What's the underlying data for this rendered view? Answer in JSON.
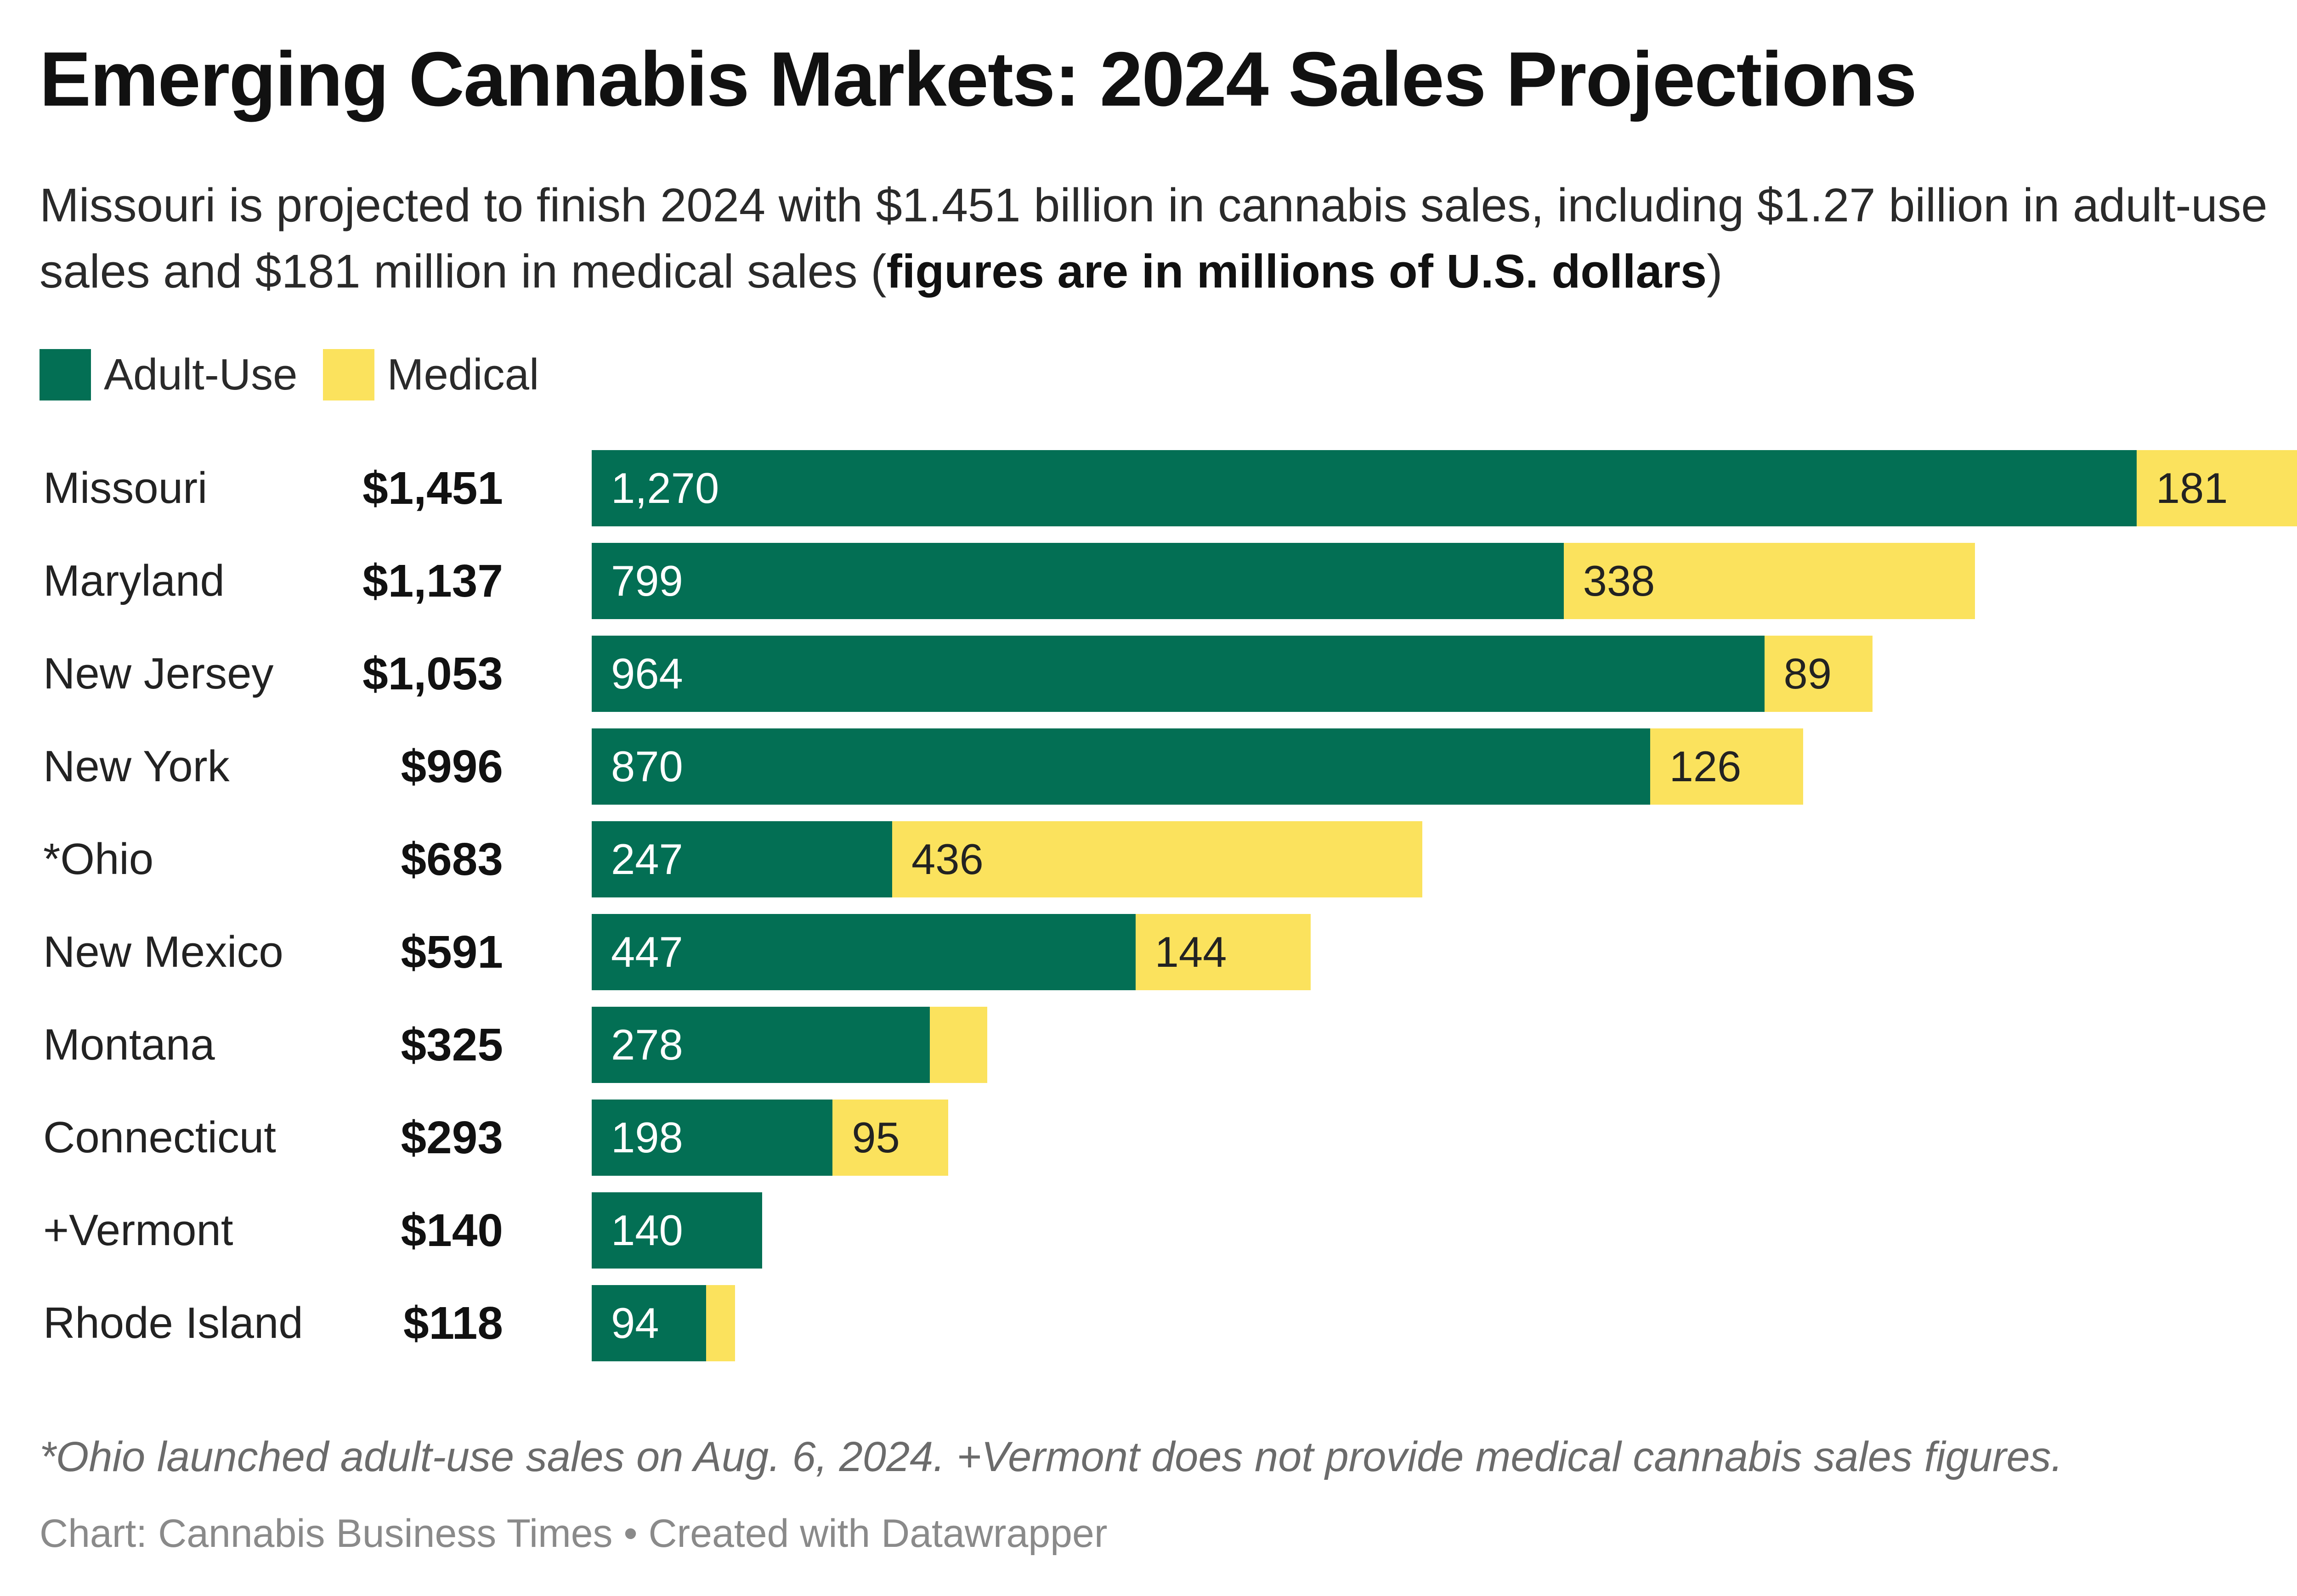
{
  "header": {
    "title": "Emerging Cannabis Markets: 2024 Sales Projections",
    "subtitle_main": "Missouri is projected to finish 2024 with $1.451 billion in cannabis sales, including $1.27 billion in adult-use sales and $181 million in medical sales (",
    "subtitle_bold": "figures are in millions of U.S. dollars",
    "subtitle_end": ")"
  },
  "legend": [
    {
      "label": "Adult-Use",
      "color": "#036f54"
    },
    {
      "label": "Medical",
      "color": "#fbe25d"
    }
  ],
  "colors": {
    "adult_use": "#036f54",
    "medical": "#fbe25d",
    "adult_use_text": "#ffffff",
    "medical_text": "#222222"
  },
  "chart_data": {
    "type": "bar",
    "orientation": "horizontal",
    "stacked": true,
    "categories": [
      "Missouri",
      "Maryland",
      "New Jersey",
      "New York",
      "*Ohio",
      "New Mexico",
      "Montana",
      "Connecticut",
      "+Vermont",
      "Rhode Island"
    ],
    "totals": [
      "$1,451",
      "$1,137",
      "$1,053",
      "$996",
      "$683",
      "$591",
      "$325",
      "$293",
      "$140",
      "$118"
    ],
    "total_values": [
      1451,
      1137,
      1053,
      996,
      683,
      591,
      325,
      293,
      140,
      118
    ],
    "series": [
      {
        "name": "Adult-Use",
        "values": [
          1270,
          799,
          964,
          870,
          247,
          447,
          278,
          198,
          140,
          94
        ]
      },
      {
        "name": "Medical",
        "values": [
          181,
          338,
          89,
          126,
          436,
          144,
          47,
          95,
          0,
          24
        ]
      }
    ],
    "value_labels": [
      [
        "1,270",
        "799",
        "964",
        "870",
        "247",
        "447",
        "278",
        "198",
        "140",
        "94"
      ],
      [
        "181",
        "338",
        "89",
        "126",
        "436",
        "144",
        "",
        "95",
        "",
        ""
      ]
    ],
    "xlim": [
      0,
      1451
    ],
    "grid": false,
    "legend_position": "top-left"
  },
  "footer": {
    "note": "*Ohio launched adult-use sales on Aug. 6, 2024. +Vermont does not provide medical cannabis sales figures.",
    "byline": "Chart: Cannabis Business Times • Created with Datawrapper"
  }
}
